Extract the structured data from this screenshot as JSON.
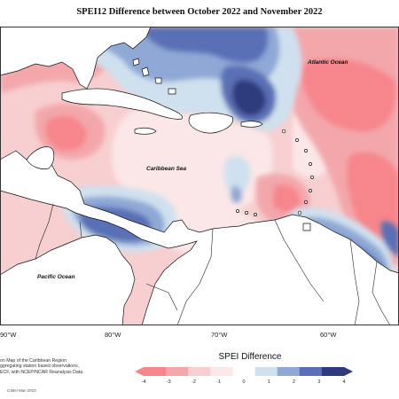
{
  "title": "SPEI12 Difference between October 2022 and November 2022",
  "labels": {
    "atlantic": "Atlantic Ocean",
    "caribbean": "Caribbean Sea",
    "pacific": "Pacific Ocean"
  },
  "longitude_labels": [
    "90°W",
    "80°W",
    "70°W",
    "60°W"
  ],
  "legend": {
    "title": "SPEI Difference",
    "ticks": [
      "-4",
      "-3",
      "-2",
      "-1",
      "0",
      "1",
      "2",
      "3",
      "4"
    ],
    "colors": [
      "#f7858c",
      "#f3a7ab",
      "#f7cfd0",
      "#fbe7e8",
      "#ffffff",
      "#cfe1ee",
      "#8fa8d6",
      "#5a6fb6",
      "#2d3a7c"
    ]
  },
  "description_lines": [
    "on Map of the Caribbean Region",
    "ggregating station based observations,",
    "ECF, with NCEP/NCAR Reanalysis Data."
  ],
  "credit": "CIMH Mar-2023",
  "colors": {
    "dry_light": "#fbe7e8",
    "dry_mid": "#f7cfd0",
    "dry_strong": "#f3a7ab",
    "dry_extreme": "#f7858c",
    "wet_light": "#cfe1ee",
    "wet_mid": "#8fa8d6",
    "wet_strong": "#5a6fb6",
    "wet_extreme": "#2d3a7c"
  }
}
